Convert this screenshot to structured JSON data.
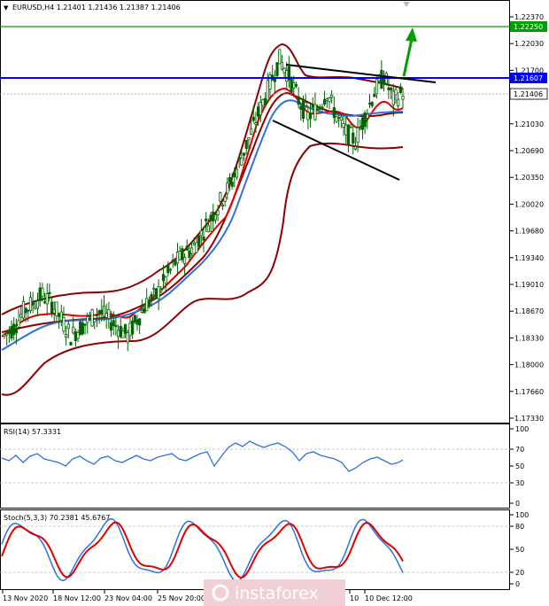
{
  "header": {
    "title": "EURUSD,H4  1.21401 1.21436 1.21387 1.21406"
  },
  "price_axis": {
    "ticks": [
      "1.22370",
      "1.22030",
      "1.21700",
      "1.21360",
      "1.21030",
      "1.20690",
      "1.20350",
      "1.20020",
      "1.19680",
      "1.19340",
      "1.19010",
      "1.18670",
      "1.18330",
      "1.18000",
      "1.17660",
      "1.17330"
    ],
    "labels": {
      "green": "1.22250",
      "blue": "1.21607",
      "current": "1.21406"
    }
  },
  "rsi": {
    "title": "RSI(14) 57.3331",
    "ticks": [
      "100",
      "70",
      "50",
      "30",
      "0"
    ]
  },
  "stoch": {
    "title": "Stoch(5,3,3) 70.2381 45.6767",
    "ticks": [
      "100",
      "80",
      "50",
      "20",
      "0"
    ]
  },
  "time_axis": {
    "labels": [
      "13 Nov 2020",
      "18 Nov 12:00",
      "23 Nov 04:00",
      "25 Nov 20:00",
      "10",
      "10 Dec 12:00"
    ]
  },
  "watermark": "instaforex",
  "colors": {
    "green": "#00a000",
    "blue": "#0000ff",
    "bb": "#8b0000",
    "ema_red": "#e00000",
    "ema_blue": "#3070e0",
    "candle": "#006400"
  },
  "chart_data": {
    "type": "line",
    "symbol": "EURUSD",
    "timeframe": "H4",
    "ylim": [
      1.1733,
      1.2237
    ],
    "horizontal_levels": [
      1.2225,
      1.21607
    ],
    "current_price": 1.21406,
    "series": [
      {
        "values": [
          1.184,
          1.185,
          1.187,
          1.188,
          1.189,
          1.188,
          1.186,
          1.184,
          1.185,
          1.186,
          1.187,
          1.186,
          1.185,
          1.184,
          1.186,
          1.188,
          1.189,
          1.191,
          1.193,
          1.194,
          1.195,
          1.197,
          1.199,
          1.201,
          1.203,
          1.206,
          1.209,
          1.212,
          1.215,
          1.218,
          1.216,
          1.213,
          1.211,
          1.212,
          1.214,
          1.211,
          1.209,
          1.208,
          1.211,
          1.214,
          1.216,
          1.213,
          1.214
        ]
      }
    ],
    "rsi_last": 57.3331,
    "stoch_last": [
      70.2381,
      45.6767
    ]
  }
}
